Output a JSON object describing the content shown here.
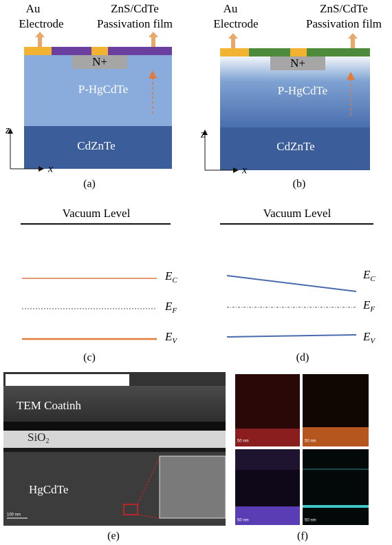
{
  "panels": {
    "a": {
      "label": "(a)",
      "electrode": [
        "Au",
        "Electrode"
      ],
      "film": [
        "ZnS/CdTe",
        "Passivation film"
      ],
      "n_plus": "N+",
      "p_layer": "P-HgCdTe",
      "substrate": "CdZnTe",
      "axis_z": "z",
      "axis_x": "x"
    },
    "b": {
      "label": "(b)",
      "electrode": [
        "Au",
        "Electrode"
      ],
      "film": [
        "ZnS/CdTe",
        "Passivation film"
      ],
      "n_plus": "N+",
      "p_layer": "P-HgCdTe",
      "substrate": "CdZnTe",
      "axis_z": "z",
      "axis_x": "x"
    },
    "c": {
      "label": "(c)",
      "vacuum": "Vacuum Level",
      "levels": [
        {
          "symbol": "E",
          "sub": "C"
        },
        {
          "symbol": "E",
          "sub": "F"
        },
        {
          "symbol": "E",
          "sub": "V"
        }
      ]
    },
    "d": {
      "label": "(d)",
      "vacuum": "Vacuum Level",
      "levels": [
        {
          "symbol": "E",
          "sub": "C"
        },
        {
          "symbol": "E",
          "sub": "F"
        },
        {
          "symbol": "E",
          "sub": "V"
        }
      ]
    },
    "e": {
      "label": "(e)",
      "coating": "TEM Coatinh",
      "oxide": {
        "text": "SiO",
        "sub": "2"
      },
      "bulk": "HgCdTe",
      "scale": "100 nm"
    },
    "f": {
      "label": "(f)",
      "scales": [
        "50 nm",
        "50 nm",
        "50 nm",
        "50 nm"
      ]
    }
  }
}
